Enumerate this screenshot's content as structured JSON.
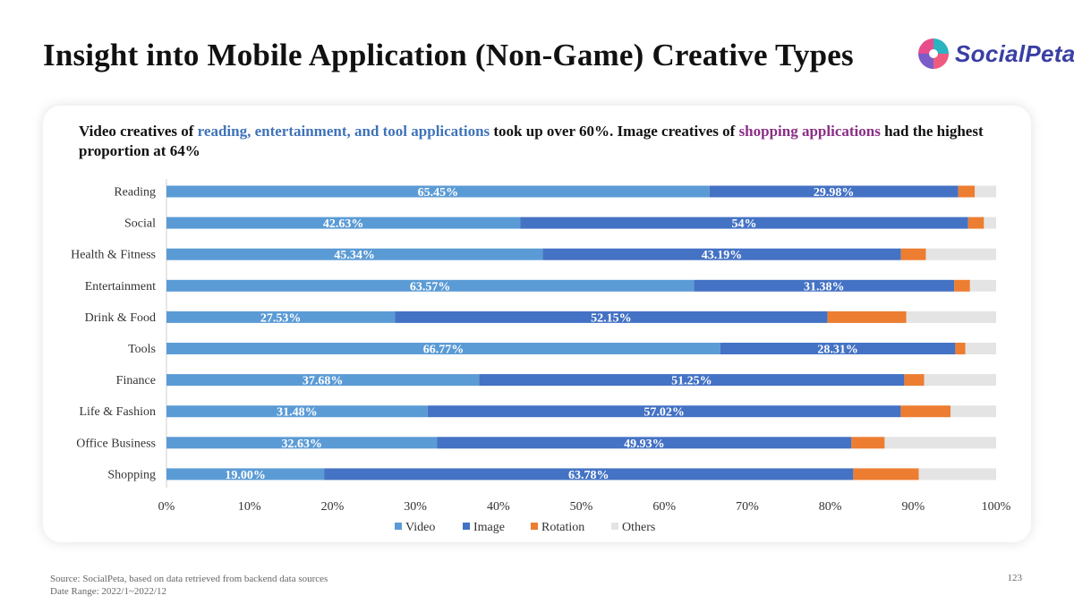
{
  "page": {
    "title": "Insight into Mobile Application (Non-Game) Creative Types",
    "brand": "SocialPeta",
    "page_number": "123"
  },
  "subtitle": {
    "part1": "Video creatives of ",
    "highlight1": "reading, entertainment, and tool applications",
    "part2": " took up over 60%. Image creatives of ",
    "highlight2": "shopping applications",
    "part3": " had the highest proportion at 64%"
  },
  "footer": {
    "source": "Source: SocialPeta, based on data retrieved from backend data sources",
    "date_range": "Date Range:  2022/1~2022/12"
  },
  "colors": {
    "video": "#5b9bd5",
    "image": "#4472c4",
    "rotation": "#ed7d31",
    "others": "#e4e4e4",
    "highlight_blue": "#3f73b8",
    "highlight_purple": "#8b2e86"
  },
  "chart_data": {
    "type": "bar",
    "orientation": "horizontal",
    "stacked": "100%",
    "categories": [
      "Reading",
      "Social",
      "Health & Fitness",
      "Entertainment",
      "Drink & Food",
      "Tools",
      "Finance",
      "Life & Fashion",
      "Office Business",
      "Shopping"
    ],
    "series": [
      {
        "name": "Video",
        "values": [
          65.45,
          42.63,
          45.34,
          63.57,
          27.53,
          66.77,
          37.68,
          31.48,
          32.63,
          19.0
        ],
        "labels": [
          "65.45%",
          "42.63%",
          "45.34%",
          "63.57%",
          "27.53%",
          "66.77%",
          "37.68%",
          "31.48%",
          "32.63%",
          "19.00%"
        ]
      },
      {
        "name": "Image",
        "values": [
          29.98,
          54,
          43.19,
          31.38,
          52.15,
          28.31,
          51.25,
          57.02,
          49.93,
          63.78
        ],
        "labels": [
          "29.98%",
          "54%",
          "43.19%",
          "31.38%",
          "52.15%",
          "28.31%",
          "51.25%",
          "57.02%",
          "49.93%",
          "63.78%"
        ]
      },
      {
        "name": "Rotation",
        "values": [
          2.0,
          1.9,
          3.0,
          1.9,
          9.5,
          1.2,
          2.4,
          6.0,
          4.0,
          7.9
        ]
      },
      {
        "name": "Others",
        "values": [
          2.57,
          1.47,
          8.47,
          3.15,
          10.82,
          3.72,
          8.67,
          5.5,
          13.44,
          9.32
        ]
      }
    ],
    "xlim": [
      0,
      100
    ],
    "xticks": [
      "0%",
      "10%",
      "20%",
      "30%",
      "40%",
      "50%",
      "60%",
      "70%",
      "80%",
      "90%",
      "100%"
    ],
    "legend_position": "bottom",
    "grid": false,
    "xlabel": "",
    "ylabel": ""
  }
}
